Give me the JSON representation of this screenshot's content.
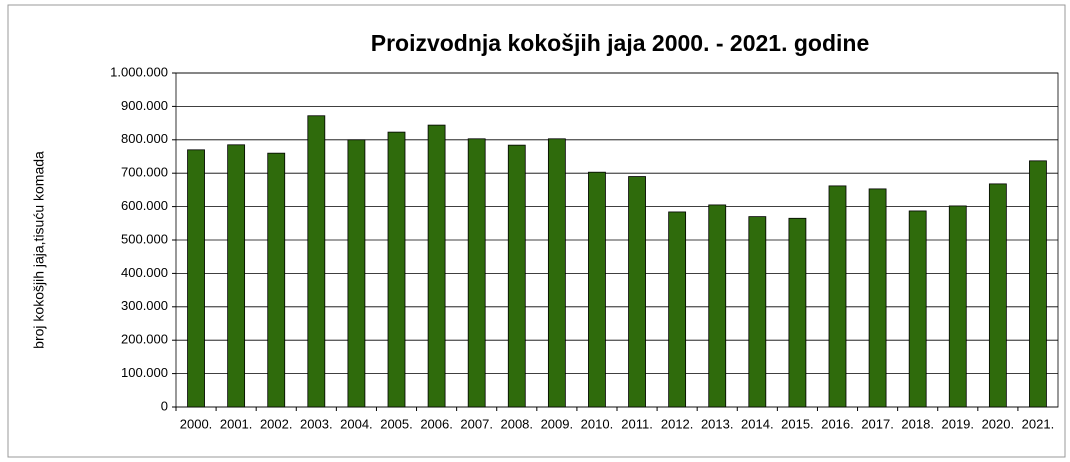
{
  "chart_data": {
    "type": "bar",
    "title": "Proizvodnja kokošjih jaja 2000. - 2021. godine",
    "y_label": "broj kokošjih jaja,tisuću komada",
    "categories": [
      "2000.",
      "2001.",
      "2002.",
      "2003.",
      "2004.",
      "2005.",
      "2006.",
      "2007.",
      "2008.",
      "2009.",
      "2010.",
      "2011.",
      "2012.",
      "2013.",
      "2014.",
      "2015.",
      "2016.",
      "2017.",
      "2018.",
      "2019.",
      "2020.",
      "2021."
    ],
    "values": [
      770000,
      785000,
      760000,
      872000,
      800000,
      823000,
      844000,
      803000,
      784000,
      803000,
      703000,
      690000,
      584000,
      605000,
      570000,
      565000,
      662000,
      653000,
      587000,
      602000,
      668000,
      737000
    ],
    "color": "#2f6b0c",
    "ylim": [
      0,
      1000000
    ],
    "yticks": [
      0,
      {
        "value": 100000,
        "label": "100.000"
      },
      {
        "value": 200000,
        "label": "200.000"
      },
      {
        "value": 300000,
        "label": "300.000"
      },
      {
        "value": 400000,
        "label": "400.000"
      },
      {
        "value": 500000,
        "label": "500.000"
      },
      {
        "value": 600000,
        "label": "600.000"
      },
      {
        "value": 700000,
        "label": "700.000"
      },
      {
        "value": 800000,
        "label": "800.000"
      },
      {
        "value": 900000,
        "label": "900.000"
      },
      {
        "value": 1000000,
        "label": "1.000.000"
      }
    ],
    "grid": true
  }
}
